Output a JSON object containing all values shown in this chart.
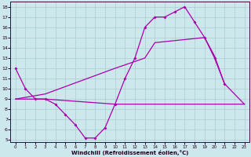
{
  "xlabel": "Windchill (Refroidissement éolien,°C)",
  "background_color": "#cce8ec",
  "grid_color": "#aacccc",
  "line_color": "#aa00aa",
  "xlim": [
    -0.5,
    23.5
  ],
  "ylim": [
    4.8,
    18.5
  ],
  "yticks": [
    5,
    6,
    7,
    8,
    9,
    10,
    11,
    12,
    13,
    14,
    15,
    16,
    17,
    18
  ],
  "xticks": [
    0,
    1,
    2,
    3,
    4,
    5,
    6,
    7,
    8,
    9,
    10,
    11,
    12,
    13,
    14,
    15,
    16,
    17,
    18,
    19,
    20,
    21,
    22,
    23
  ],
  "line1_x": [
    0,
    1,
    2,
    3,
    4,
    5,
    6,
    7,
    8,
    9,
    10,
    11,
    12,
    13,
    14,
    15,
    16,
    17,
    18,
    19,
    20,
    21
  ],
  "line1_y": [
    12.0,
    10.0,
    9.0,
    9.0,
    8.5,
    7.5,
    6.5,
    5.2,
    5.2,
    6.2,
    8.5,
    11.0,
    13.0,
    16.0,
    17.0,
    17.0,
    17.5,
    18.0,
    16.5,
    15.0,
    13.0,
    10.5
  ],
  "line2_x": [
    0,
    3,
    10,
    23
  ],
  "line2_y": [
    9.0,
    9.0,
    8.5,
    8.5
  ],
  "line3_x": [
    0,
    3,
    10,
    13,
    14,
    19,
    20,
    21,
    23
  ],
  "line3_y": [
    9.0,
    9.5,
    12.0,
    13.0,
    14.5,
    15.0,
    13.2,
    10.5,
    8.5
  ]
}
